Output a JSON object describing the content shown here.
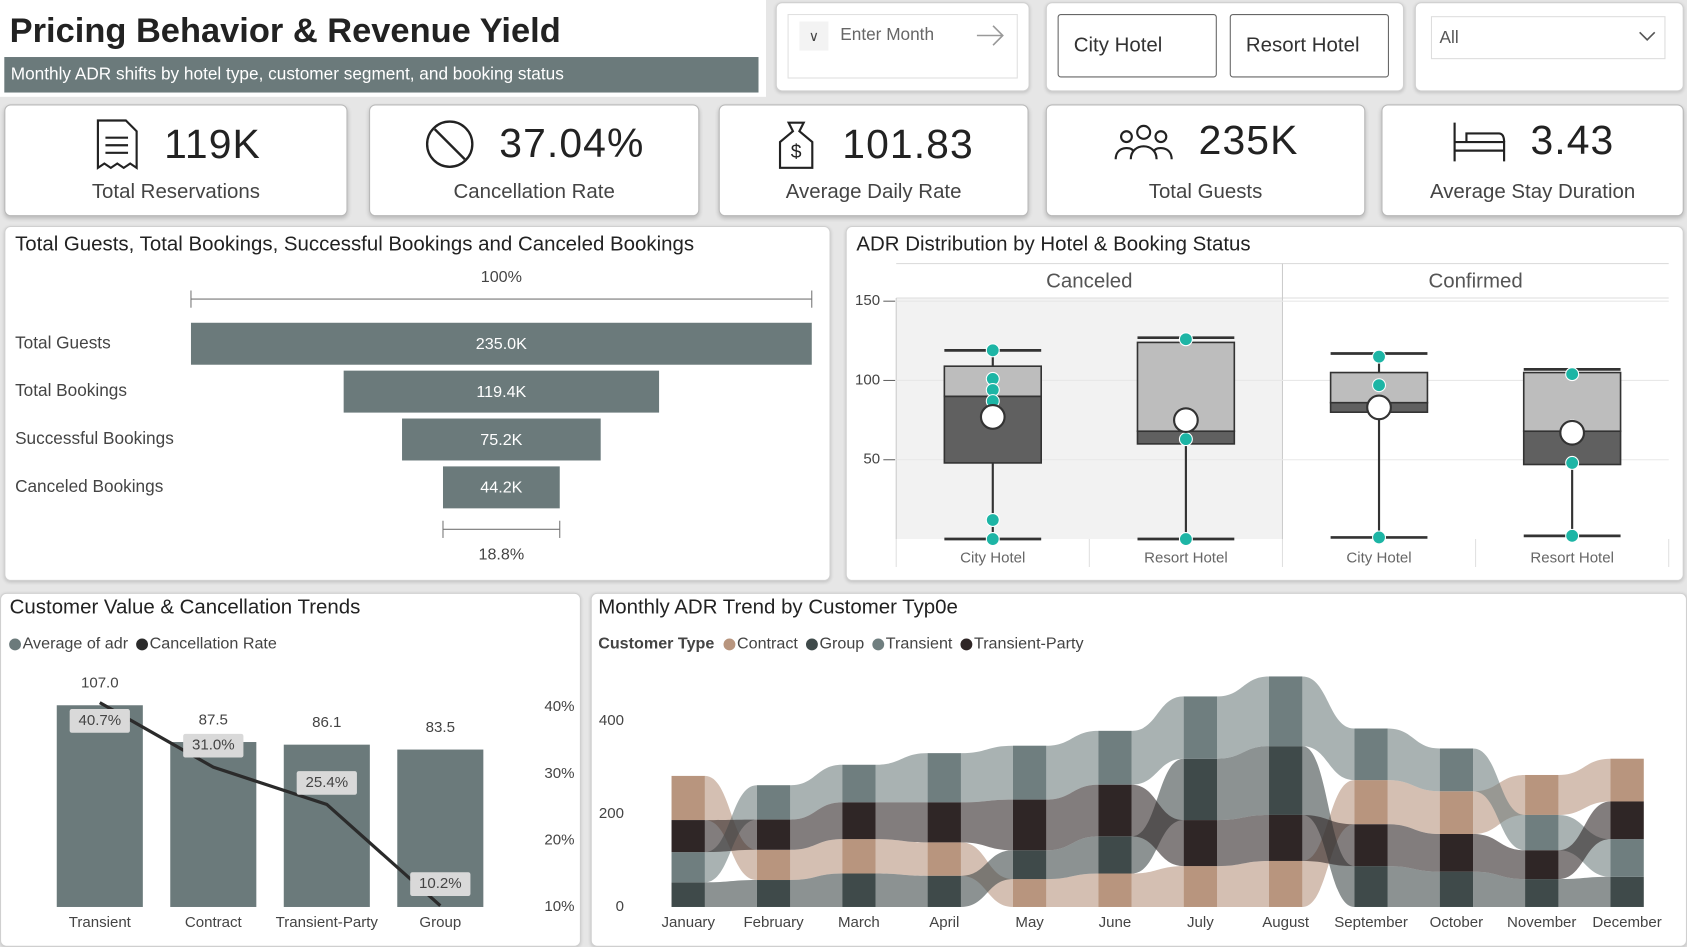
{
  "header": {
    "title": "Pricing Behavior & Revenue Yield",
    "subtitle": "Monthly ADR shifts by hotel type, customer segment, and booking status"
  },
  "filters": {
    "month_placeholder": "Enter Month",
    "hotel_buttons": [
      "City Hotel",
      "Resort Hotel"
    ],
    "dropdown": "All"
  },
  "kpis": [
    {
      "value": "119K",
      "label": "Total Reservations"
    },
    {
      "value": "37.04%",
      "label": "Cancellation Rate"
    },
    {
      "value": "101.83",
      "label": "Average Daily Rate"
    },
    {
      "value": "235K",
      "label": "Total Guests"
    },
    {
      "value": "3.43",
      "label": "Average Stay Duration"
    }
  ],
  "chart_data": [
    {
      "type": "funnel",
      "title": "Total Guests, Total Bookings, Successful Bookings and Canceled Bookings",
      "categories": [
        "Total Guests",
        "Total Bookings",
        "Successful Bookings",
        "Canceled Bookings"
      ],
      "values": [
        235000,
        119400,
        75200,
        44200
      ],
      "value_labels": [
        "235.0K",
        "119.4K",
        "75.2K",
        "44.2K"
      ],
      "color": "#6b7a7b",
      "top_label": "100%",
      "bottom_label": "18.8%"
    },
    {
      "type": "box",
      "title": "ADR Distribution by Hotel & Booking Status",
      "ylim": [
        0,
        152
      ],
      "yticks": [
        50,
        100,
        150
      ],
      "grid": true,
      "box_colors": {
        "lower": "#606060",
        "upper": "#bdbdbd"
      },
      "point_color": "#1db5a5",
      "facets": [
        {
          "name": "Canceled",
          "boxes": [
            {
              "category": "City Hotel",
              "min": 0,
              "q1": 48,
              "median": 90,
              "q3": 109,
              "max": 119,
              "mean": 77,
              "points": [
                119,
                101,
                94,
                87,
                12,
                0
              ]
            },
            {
              "category": "Resort Hotel",
              "min": 0,
              "q1": 60,
              "median": 68,
              "q3": 124,
              "max": 127,
              "mean": 75,
              "points": [
                126,
                63,
                0
              ]
            }
          ]
        },
        {
          "name": "Confirmed",
          "boxes": [
            {
              "category": "City Hotel",
              "min": 1,
              "q1": 80,
              "median": 86,
              "q3": 105,
              "max": 117,
              "mean": 83,
              "points": [
                115,
                97,
                1
              ]
            },
            {
              "category": "Resort Hotel",
              "min": 2,
              "q1": 47,
              "median": 68,
              "q3": 105,
              "max": 107,
              "mean": 67,
              "points": [
                104,
                71,
                48,
                2
              ]
            }
          ]
        }
      ]
    },
    {
      "type": "bar",
      "title": "Customer Value & Cancellation Trends",
      "categories": [
        "Transient",
        "Contract",
        "Transient-Party",
        "Group"
      ],
      "ylim": [
        0,
        113
      ],
      "y2lim": [
        10,
        42
      ],
      "y2ticks": [
        {
          "value": 10,
          "label": "10%"
        },
        {
          "value": 20,
          "label": "20%"
        },
        {
          "value": 30,
          "label": "30%"
        },
        {
          "value": 40,
          "label": "40%"
        }
      ],
      "series": [
        {
          "name": "Average of adr",
          "color": "#6b7a7b",
          "values": [
            107,
            87.5,
            86.1,
            83.5
          ],
          "value_labels": [
            "107.0",
            "87.5",
            "86.1",
            "83.5"
          ]
        },
        {
          "name": "Cancellation Rate",
          "type": "line",
          "axis": "y2",
          "color": "#2b2b2b",
          "values": [
            40.7,
            31,
            25.4,
            10.2
          ],
          "value_labels": [
            "40.7%",
            "31.0%",
            "25.4%",
            "10.2%"
          ]
        }
      ]
    },
    {
      "type": "ribbon",
      "title": "Monthly ADR Trend by Customer Typ0e",
      "legend_title": "Customer Type",
      "categories": [
        "January",
        "February",
        "March",
        "April",
        "May",
        "June",
        "July",
        "August",
        "September",
        "October",
        "November",
        "December"
      ],
      "ylim": [
        0,
        500
      ],
      "yticks": [
        0,
        200,
        400
      ],
      "series": [
        {
          "name": "Contract",
          "color": "#b8957e",
          "values": [
            95,
            65,
            74,
            72,
            60,
            72,
            88,
            99,
            95,
            92,
            86,
            92
          ]
        },
        {
          "name": "Group",
          "color": "#3f4a4a",
          "values": [
            53,
            58,
            72,
            67,
            62,
            80,
            132,
            148,
            88,
            76,
            60,
            65
          ]
        },
        {
          "name": "Transient",
          "color": "#6f7e7f",
          "values": [
            65,
            74,
            81,
            106,
            116,
            116,
            134,
            150,
            111,
            92,
            76,
            81
          ]
        },
        {
          "name": "Transient-Party",
          "color": "#2f2626",
          "values": [
            69,
            65,
            79,
            86,
            109,
            111,
            99,
            99,
            90,
            81,
            62,
            81
          ]
        }
      ]
    }
  ]
}
